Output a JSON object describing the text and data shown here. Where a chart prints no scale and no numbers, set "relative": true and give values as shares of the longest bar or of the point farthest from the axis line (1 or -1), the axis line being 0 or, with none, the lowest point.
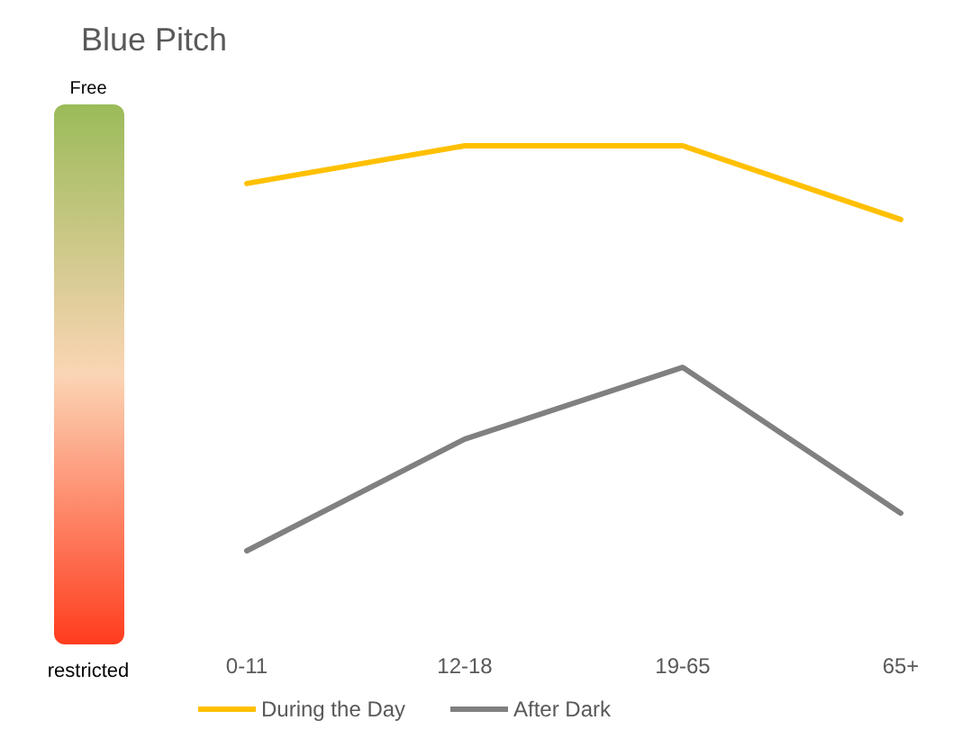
{
  "chart_data": {
    "type": "line",
    "title": "Blue Pitch",
    "relative": true,
    "categories": [
      "0-11",
      "12-18",
      "19-65",
      "65+"
    ],
    "series": [
      {
        "name": "During the Day",
        "color": "#ffc000",
        "values": [
          0.907,
          1,
          1,
          0.818
        ]
      },
      {
        "name": "After Dark",
        "color": "#808080",
        "values": [
          0,
          0.276,
          0.453,
          0.093
        ]
      }
    ],
    "annotations": [
      "Free",
      "restricted"
    ],
    "legend": "bottom",
    "grid": false,
    "marker": "none",
    "line_style": "solid"
  }
}
